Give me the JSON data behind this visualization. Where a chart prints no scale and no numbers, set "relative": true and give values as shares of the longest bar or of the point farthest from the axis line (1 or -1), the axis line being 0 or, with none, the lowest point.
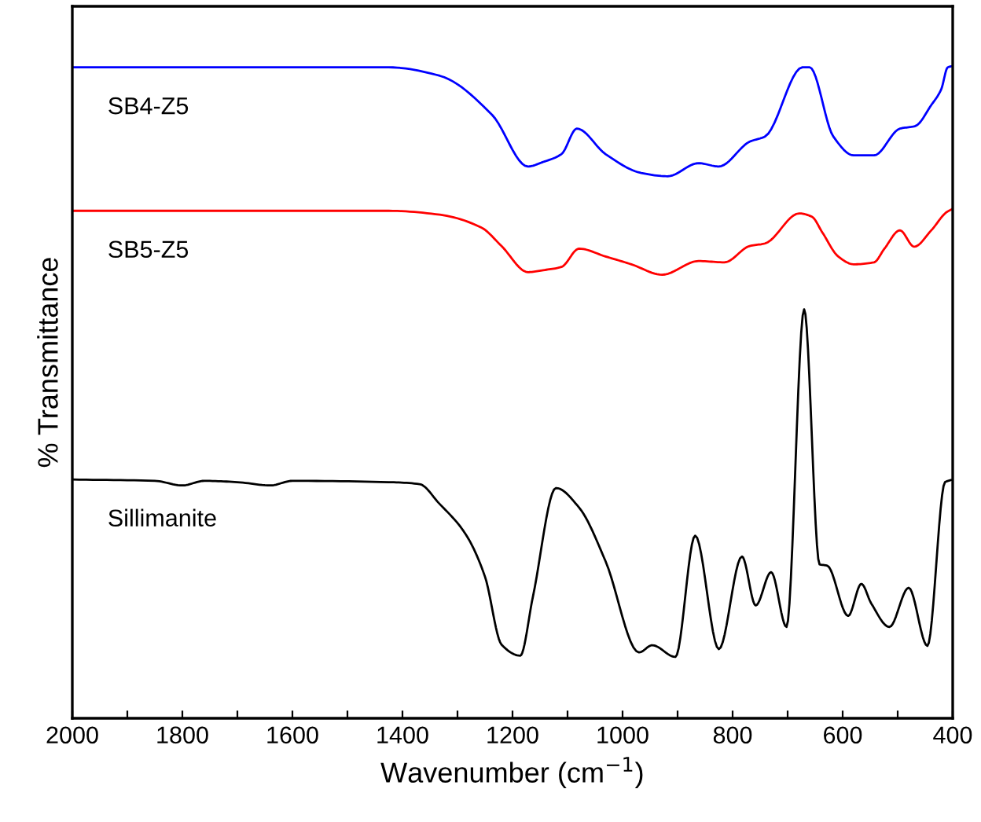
{
  "chart_data": {
    "type": "line",
    "relative": true,
    "xlabel": "Wavenumber (cm$^{−1}$)",
    "ylabel": "% Transmittance",
    "xlim": [
      2000,
      400
    ],
    "xticks": [
      2000,
      {
        "value": 1900,
        "label": null
      },
      1800,
      {
        "value": 1700,
        "label": null
      },
      1600,
      {
        "value": 1500,
        "label": null
      },
      1400,
      {
        "value": 1300,
        "label": null
      },
      1200,
      {
        "value": 1100,
        "label": null
      },
      1000,
      {
        "value": 900,
        "label": null
      },
      800,
      {
        "value": 700,
        "label": null
      },
      600,
      {
        "value": 500,
        "label": null
      },
      400
    ],
    "tick_labels": "x",
    "grid": false,
    "legend": false,
    "marker": "none",
    "line_style": "solid",
    "series": [
      {
        "name": "SB4-Z5",
        "color": "#0000ff",
        "x": [
          2000,
          1425,
          1332,
          1237,
          1172,
          1144,
          1111,
          1083,
          1031,
          966,
          918,
          862,
          825,
          769,
          741,
          673,
          660,
          617,
          580,
          543,
          496,
          468,
          439,
          421,
          409,
          400
        ],
        "values": [
          0.998,
          0.998,
          0.985,
          0.925,
          0.846,
          0.853,
          0.865,
          0.904,
          0.865,
          0.836,
          0.831,
          0.851,
          0.846,
          0.884,
          0.892,
          0.998,
          0.998,
          0.892,
          0.863,
          0.863,
          0.904,
          0.908,
          0.94,
          0.964,
          0.998,
          1.0
        ]
      },
      {
        "name": "SB5-Z5",
        "color": "#ff0000",
        "x": [
          2000,
          1425,
          1332,
          1256,
          1220,
          1172,
          1144,
          1111,
          1079,
          1031,
          984,
          928,
          862,
          815,
          769,
          741,
          679,
          656,
          637,
          608,
          580,
          543,
          524,
          496,
          470,
          439,
          411,
          400
        ],
        "values": [
          0.778,
          0.778,
          0.772,
          0.752,
          0.724,
          0.684,
          0.687,
          0.692,
          0.72,
          0.708,
          0.696,
          0.68,
          0.701,
          0.699,
          0.724,
          0.728,
          0.774,
          0.769,
          0.745,
          0.708,
          0.696,
          0.699,
          0.72,
          0.748,
          0.723,
          0.748,
          0.776,
          0.781
        ]
      },
      {
        "name": "Sillimanite",
        "color": "#000000",
        "x": [
          2000,
          1850,
          1800,
          1760,
          1700,
          1640,
          1600,
          1425,
          1369,
          1334,
          1285,
          1250,
          1220,
          1186,
          1163,
          1121,
          1079,
          1031,
          970,
          946,
          904,
          868,
          825,
          783,
          758,
          730,
          702,
          670,
          642,
          628,
          590,
          566,
          548,
          515,
          480,
          446,
          414,
          400
        ],
        "values": [
          0.366,
          0.364,
          0.357,
          0.364,
          0.362,
          0.357,
          0.364,
          0.362,
          0.359,
          0.33,
          0.282,
          0.217,
          0.113,
          0.096,
          0.186,
          0.353,
          0.323,
          0.241,
          0.101,
          0.112,
          0.094,
          0.28,
          0.106,
          0.248,
          0.173,
          0.224,
          0.14,
          0.627,
          0.236,
          0.234,
          0.157,
          0.206,
          0.176,
          0.14,
          0.2,
          0.111,
          0.362,
          0.366
        ]
      }
    ]
  }
}
